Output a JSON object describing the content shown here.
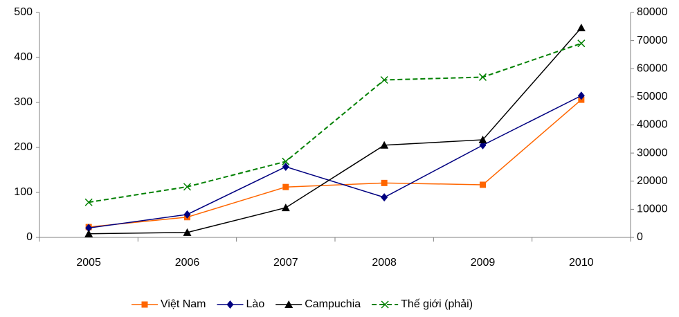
{
  "chart_data": {
    "type": "line",
    "categories": [
      "2005",
      "2006",
      "2007",
      "2008",
      "2009",
      "2010"
    ],
    "ylim": [
      0,
      500
    ],
    "yticks": [
      0,
      100,
      200,
      300,
      400,
      500
    ],
    "y2lim": [
      0,
      80000
    ],
    "y2ticks": [
      0,
      10000,
      20000,
      30000,
      40000,
      50000,
      60000,
      70000,
      80000
    ],
    "grid": false,
    "legend": "bottom",
    "series": [
      {
        "name": "Việt Nam",
        "color": "#ff6600",
        "marker": "square",
        "dashed": false,
        "values": [
          23,
          45,
          112,
          121,
          117,
          306
        ]
      },
      {
        "name": "Lào",
        "color": "#000080",
        "marker": "diamond",
        "dashed": false,
        "values": [
          21,
          51,
          157,
          89,
          205,
          315
        ]
      },
      {
        "name": "Campuchia",
        "color": "#000000",
        "marker": "triangle",
        "dashed": false,
        "values": [
          8,
          11,
          66,
          205,
          217,
          466
        ]
      },
      {
        "name": "Thế giới (phải)",
        "color": "#008000",
        "marker": "x",
        "dashed": true,
        "axis": "y2",
        "values": [
          12500,
          18000,
          27000,
          56000,
          57000,
          69000
        ]
      }
    ]
  }
}
